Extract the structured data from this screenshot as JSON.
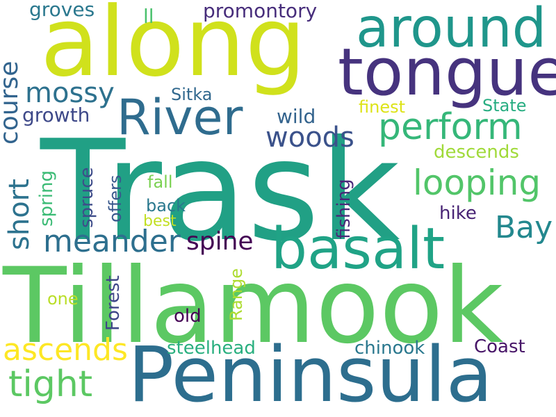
{
  "words": [
    {
      "id": "trask",
      "text": "Trask",
      "color": "#21a085"
    },
    {
      "id": "tillamook",
      "text": "Tillamook",
      "color": "#5cc863"
    },
    {
      "id": "along",
      "text": "along",
      "color": "#d0e11c"
    },
    {
      "id": "peninsula",
      "text": "Peninsula",
      "color": "#2d6e8e"
    },
    {
      "id": "tongue",
      "text": "tongue",
      "color": "#46337e"
    },
    {
      "id": "around",
      "text": "around",
      "color": "#1f968b"
    },
    {
      "id": "basalt",
      "text": "basalt",
      "color": "#20a386"
    },
    {
      "id": "river",
      "text": "River",
      "color": "#2f6c8e"
    },
    {
      "id": "perform",
      "text": "perform",
      "color": "#35b779"
    },
    {
      "id": "looping",
      "text": "looping",
      "color": "#52c569"
    },
    {
      "id": "bay",
      "text": "Bay",
      "color": "#23888e"
    },
    {
      "id": "meander",
      "text": "meander",
      "color": "#2d6f8e"
    },
    {
      "id": "tight",
      "text": "tight",
      "color": "#5cc863"
    },
    {
      "id": "ascends",
      "text": "ascends",
      "color": "#fde725"
    },
    {
      "id": "course",
      "text": "course",
      "color": "#32648e"
    },
    {
      "id": "short",
      "text": "short",
      "color": "#2c728e"
    },
    {
      "id": "mossy",
      "text": "mossy",
      "color": "#2d718e"
    },
    {
      "id": "woods",
      "text": "woods",
      "color": "#3b528b"
    },
    {
      "id": "spine",
      "text": "spine",
      "color": "#440154"
    },
    {
      "id": "promontory",
      "text": "promontory",
      "color": "#472d7b"
    },
    {
      "id": "groves",
      "text": "groves",
      "color": "#2a788e"
    },
    {
      "id": "ll",
      "text": "ll",
      "color": "#4ac16d"
    },
    {
      "id": "sitka",
      "text": "Sitka",
      "color": "#31688e"
    },
    {
      "id": "growth",
      "text": "growth",
      "color": "#3e4989"
    },
    {
      "id": "wild",
      "text": "wild",
      "color": "#33638d"
    },
    {
      "id": "finest",
      "text": "finest",
      "color": "#dde318"
    },
    {
      "id": "state",
      "text": "State",
      "color": "#27ad81"
    },
    {
      "id": "descends",
      "text": "descends",
      "color": "#a0da39"
    },
    {
      "id": "fall",
      "text": "fall",
      "color": "#7ad151"
    },
    {
      "id": "back",
      "text": "back",
      "color": "#2a788e"
    },
    {
      "id": "best",
      "text": "best",
      "color": "#c2df23"
    },
    {
      "id": "hike",
      "text": "hike",
      "color": "#482475"
    },
    {
      "id": "spring",
      "text": "spring",
      "color": "#3bbb75"
    },
    {
      "id": "spruce",
      "text": "spruce",
      "color": "#3e4c8a"
    },
    {
      "id": "offers",
      "text": "offers",
      "color": "#38588c"
    },
    {
      "id": "fishing",
      "text": "fishing",
      "color": "#482878"
    },
    {
      "id": "forest",
      "text": "Forest",
      "color": "#3f4788"
    },
    {
      "id": "range",
      "text": "Range",
      "color": "#addc30"
    },
    {
      "id": "one",
      "text": "one",
      "color": "#bade28"
    },
    {
      "id": "old",
      "text": "old",
      "color": "#440154"
    },
    {
      "id": "steelhead",
      "text": "steelhead",
      "color": "#29af7f"
    },
    {
      "id": "chinook",
      "text": "chinook",
      "color": "#2a788e"
    },
    {
      "id": "coast",
      "text": "Coast",
      "color": "#481668"
    }
  ]
}
